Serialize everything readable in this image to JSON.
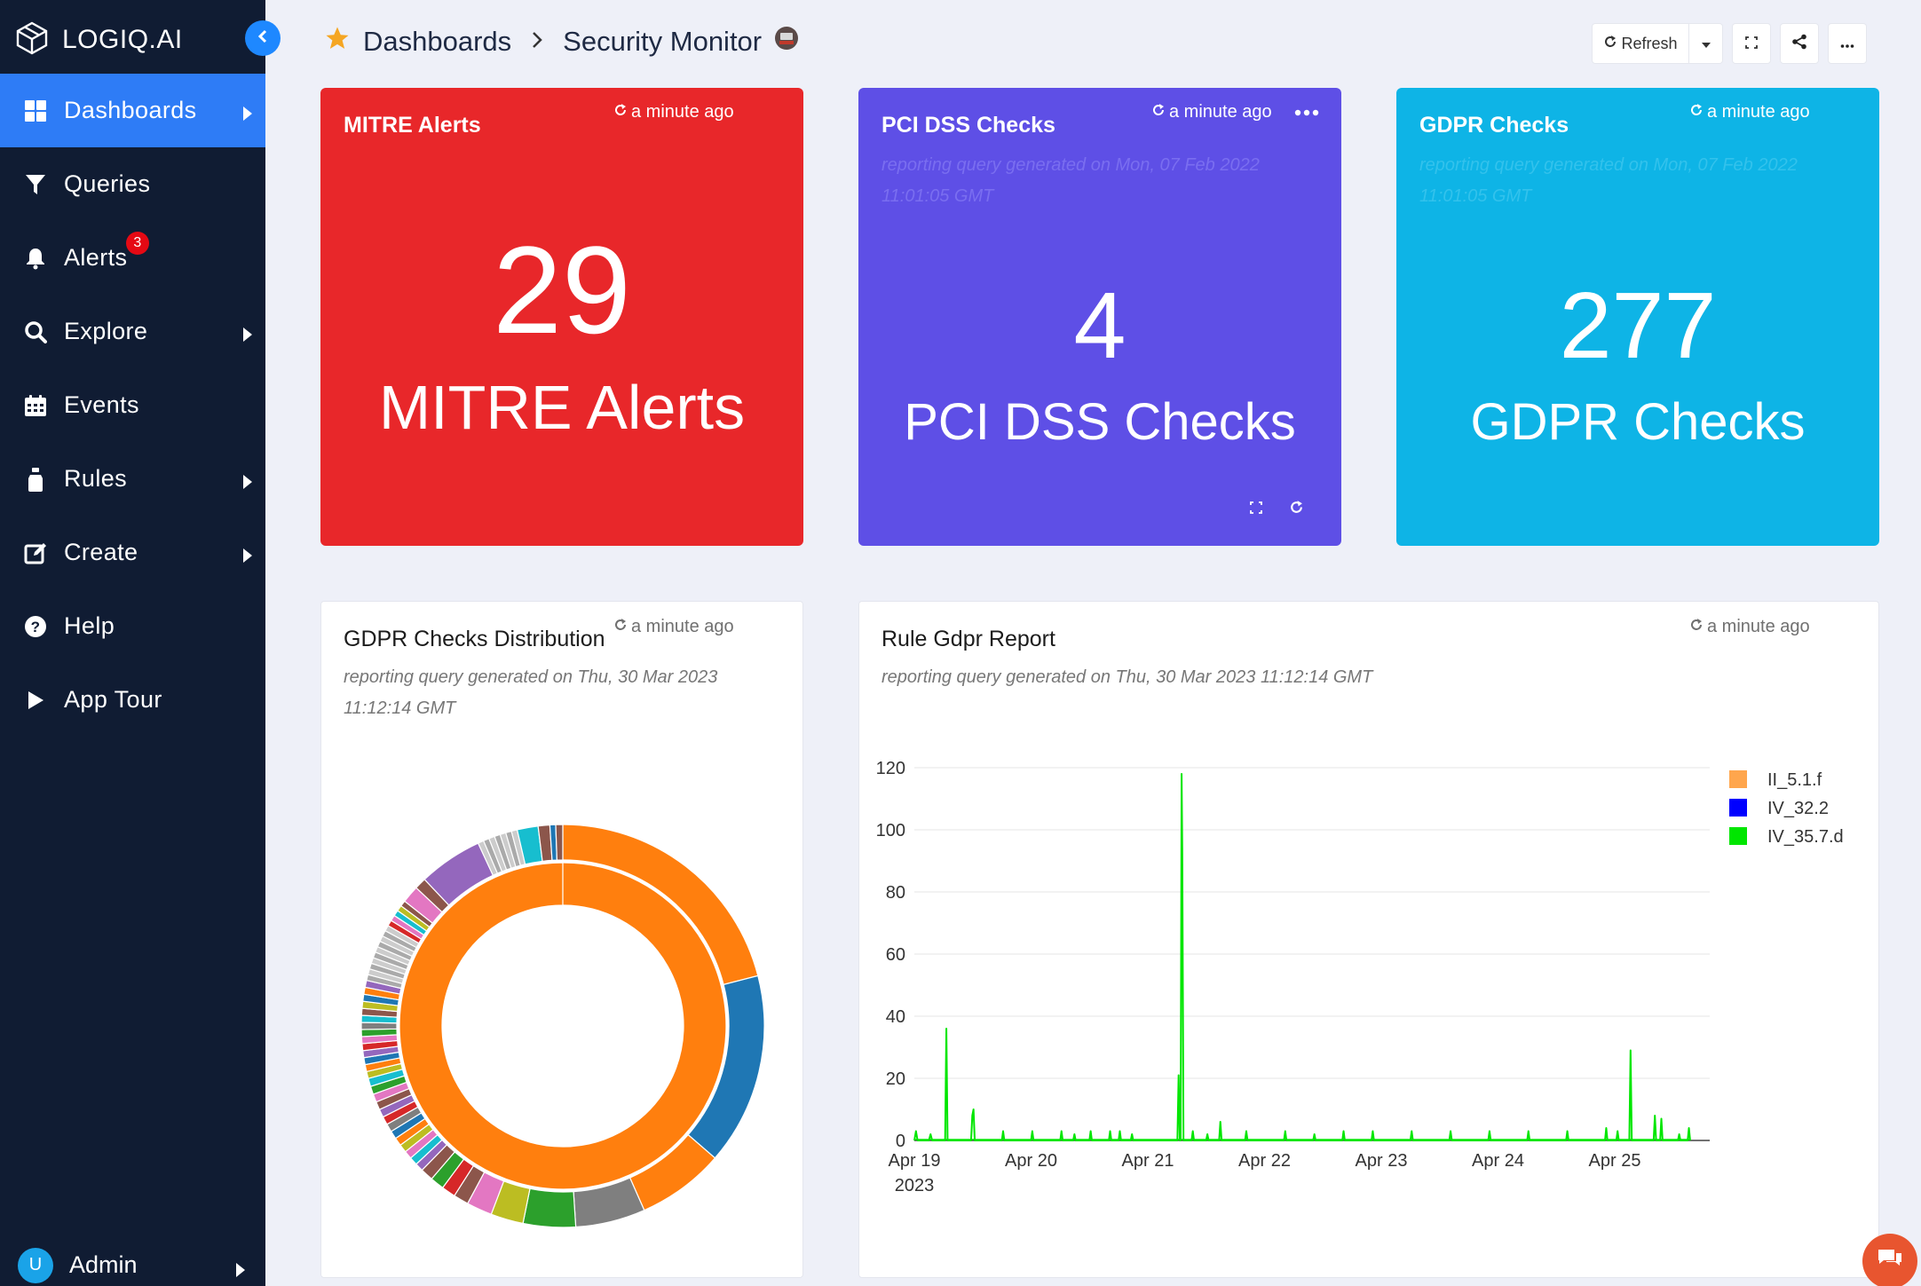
{
  "brand": {
    "name": "LOGIQ.AI"
  },
  "sidebar": {
    "items": [
      {
        "label": "Dashboards",
        "icon": "grid-icon",
        "active": true,
        "has_submenu": true
      },
      {
        "label": "Queries",
        "icon": "filter-icon",
        "has_submenu": false
      },
      {
        "label": "Alerts",
        "icon": "bell-icon",
        "badge": "3",
        "has_submenu": false
      },
      {
        "label": "Explore",
        "icon": "search-icon",
        "has_submenu": true
      },
      {
        "label": "Events",
        "icon": "calendar-icon",
        "has_submenu": false
      },
      {
        "label": "Rules",
        "icon": "rules-icon",
        "has_submenu": true
      },
      {
        "label": "Create",
        "icon": "edit-icon",
        "has_submenu": true
      },
      {
        "label": "Help",
        "icon": "help-icon",
        "has_submenu": false
      },
      {
        "label": "App Tour",
        "icon": "play-icon",
        "has_submenu": false
      }
    ],
    "user": {
      "initial": "U",
      "name": "Admin"
    }
  },
  "header": {
    "breadcrumb": {
      "root": "Dashboards",
      "current": "Security Monitor"
    },
    "refresh_label": "Refresh"
  },
  "tiles": [
    {
      "title": "MITRE Alerts",
      "time": "a minute ago",
      "value": "29",
      "label": "MITRE Alerts",
      "color": "#e8272a"
    },
    {
      "title": "PCI DSS Checks",
      "time": "a minute ago",
      "subtitle": "reporting query generated on Mon, 07 Feb 2022 11:01:05 GMT",
      "value": "4",
      "label": "PCI DSS Checks",
      "color": "#5e4fe6"
    },
    {
      "title": "GDPR Checks",
      "time": "a minute ago",
      "subtitle": "reporting query generated on Mon, 07 Feb 2022 11:01:05 GMT",
      "value": "277",
      "label": "GDPR Checks",
      "color": "#0eb4e6"
    }
  ],
  "cards": {
    "donut": {
      "title": "GDPR Checks Distribution",
      "time": "a minute ago",
      "subtitle_line1": "reporting query generated on Thu, 30 Mar 2023",
      "subtitle_line2": "11:12:14 GMT"
    },
    "line": {
      "title": "Rule Gdpr Report",
      "time": "a minute ago",
      "subtitle": "reporting query generated on Thu, 30 Mar 2023 11:12:14 GMT"
    }
  },
  "chart_data": [
    {
      "type": "pie",
      "title": "GDPR Checks Distribution",
      "inner_ring": {
        "slices": [
          {
            "value": 100,
            "color": "#ff7f0e"
          }
        ]
      },
      "outer_ring": {
        "slices": [
          {
            "value": 22.5,
            "color": "#ff7f0e"
          },
          {
            "value": 16.5,
            "color": "#1f77b4"
          },
          {
            "value": 7.5,
            "color": "#ff7f0e"
          },
          {
            "value": 6.0,
            "color": "#7f7f7f"
          },
          {
            "value": 4.5,
            "color": "#2ca02c"
          },
          {
            "value": 2.8,
            "color": "#bcbd22"
          },
          {
            "value": 2.2,
            "color": "#e377c2"
          },
          {
            "value": 1.3,
            "color": "#8c564b"
          },
          {
            "value": 1.2,
            "color": "#d62728"
          },
          {
            "value": 1.2,
            "color": "#2ca02c"
          },
          {
            "value": 1.1,
            "color": "#8c564b"
          },
          {
            "value": 0.7,
            "color": "#9467bd"
          },
          {
            "value": 0.7,
            "color": "#17becf"
          },
          {
            "value": 0.7,
            "color": "#e377c2"
          },
          {
            "value": 0.7,
            "color": "#bcbd22"
          },
          {
            "value": 0.7,
            "color": "#ff7f0e"
          },
          {
            "value": 0.7,
            "color": "#1f77b4"
          },
          {
            "value": 0.7,
            "color": "#7f7f7f"
          },
          {
            "value": 0.7,
            "color": "#d62728"
          },
          {
            "value": 0.7,
            "color": "#9467bd"
          },
          {
            "value": 0.7,
            "color": "#8c564b"
          },
          {
            "value": 0.7,
            "color": "#e377c2"
          },
          {
            "value": 0.7,
            "color": "#2ca02c"
          },
          {
            "value": 0.7,
            "color": "#17becf"
          },
          {
            "value": 0.6,
            "color": "#bcbd22"
          },
          {
            "value": 0.6,
            "color": "#ff7f0e"
          },
          {
            "value": 0.6,
            "color": "#1f77b4"
          },
          {
            "value": 0.6,
            "color": "#9467bd"
          },
          {
            "value": 0.6,
            "color": "#d62728"
          },
          {
            "value": 0.6,
            "color": "#e377c2"
          },
          {
            "value": 0.6,
            "color": "#2ca02c"
          },
          {
            "value": 0.6,
            "color": "#7f7f7f"
          },
          {
            "value": 0.6,
            "color": "#17becf"
          },
          {
            "value": 0.6,
            "color": "#8c564b"
          },
          {
            "value": 0.6,
            "color": "#bcbd22"
          },
          {
            "value": 0.6,
            "color": "#1f77b4"
          },
          {
            "value": 0.6,
            "color": "#ff7f0e"
          },
          {
            "value": 0.6,
            "color": "#9467bd"
          },
          {
            "value": 0.5,
            "color": "#aaaaaa"
          },
          {
            "value": 0.5,
            "color": "#cccccc"
          },
          {
            "value": 0.5,
            "color": "#aaaaaa"
          },
          {
            "value": 0.5,
            "color": "#cccccc"
          },
          {
            "value": 0.5,
            "color": "#aaaaaa"
          },
          {
            "value": 0.5,
            "color": "#cccccc"
          },
          {
            "value": 0.5,
            "color": "#aaaaaa"
          },
          {
            "value": 0.5,
            "color": "#cccccc"
          },
          {
            "value": 0.5,
            "color": "#aaaaaa"
          },
          {
            "value": 0.5,
            "color": "#cccccc"
          },
          {
            "value": 0.5,
            "color": "#d62728"
          },
          {
            "value": 0.5,
            "color": "#e377c2"
          },
          {
            "value": 0.5,
            "color": "#17becf"
          },
          {
            "value": 0.5,
            "color": "#bcbd22"
          },
          {
            "value": 0.5,
            "color": "#8c564b"
          },
          {
            "value": 1.5,
            "color": "#e377c2"
          },
          {
            "value": 1.0,
            "color": "#8c564b"
          },
          {
            "value": 5.5,
            "color": "#9467bd"
          },
          {
            "value": 0.5,
            "color": "#cccccc"
          },
          {
            "value": 0.5,
            "color": "#aaaaaa"
          },
          {
            "value": 0.5,
            "color": "#cccccc"
          },
          {
            "value": 0.5,
            "color": "#aaaaaa"
          },
          {
            "value": 0.5,
            "color": "#cccccc"
          },
          {
            "value": 0.5,
            "color": "#aaaaaa"
          },
          {
            "value": 0.5,
            "color": "#cccccc"
          },
          {
            "value": 1.8,
            "color": "#17becf"
          },
          {
            "value": 1.0,
            "color": "#8c564b"
          },
          {
            "value": 0.5,
            "color": "#1f77b4"
          },
          {
            "value": 0.6,
            "color": "#8c564b"
          }
        ]
      }
    },
    {
      "type": "line",
      "title": "Rule Gdpr Report",
      "xlabel": "",
      "ylabel": "",
      "ylim": [
        0,
        120
      ],
      "y_ticks": [
        0,
        20,
        40,
        60,
        80,
        100,
        120
      ],
      "x_ticks": [
        "Apr 19",
        "Apr 20",
        "Apr 21",
        "Apr 22",
        "Apr 23",
        "Apr 24",
        "Apr 25"
      ],
      "x_tick_sub": "2023",
      "grid": true,
      "legend_position": "top-right",
      "x_start": "2023-04-19",
      "x_end": "2023-04-25 15:30",
      "series": [
        {
          "name": "II_5.1.f",
          "color": "#ffa64d",
          "points": []
        },
        {
          "name": "IV_32.2",
          "color": "#0000ff",
          "points": []
        },
        {
          "name": "IV_35.7.d",
          "color": "#00e600",
          "points": [
            [
              "2023-04-19 00:00",
              0
            ],
            [
              "2023-04-19 00:20",
              3
            ],
            [
              "2023-04-19 00:40",
              0
            ],
            [
              "2023-04-19 03:00",
              0
            ],
            [
              "2023-04-19 03:20",
              2
            ],
            [
              "2023-04-19 03:40",
              0
            ],
            [
              "2023-04-19 06:20",
              0
            ],
            [
              "2023-04-19 06:35",
              36
            ],
            [
              "2023-04-19 06:50",
              0
            ],
            [
              "2023-04-19 11:40",
              0
            ],
            [
              "2023-04-19 11:55",
              8
            ],
            [
              "2023-04-19 12:10",
              10
            ],
            [
              "2023-04-19 12:25",
              0
            ],
            [
              "2023-04-19 18:00",
              0
            ],
            [
              "2023-04-19 18:15",
              3
            ],
            [
              "2023-04-19 18:30",
              0
            ],
            [
              "2023-04-20 00:00",
              0
            ],
            [
              "2023-04-20 00:15",
              3
            ],
            [
              "2023-04-20 00:30",
              0
            ],
            [
              "2023-04-20 06:00",
              0
            ],
            [
              "2023-04-20 06:15",
              3
            ],
            [
              "2023-04-20 06:30",
              0
            ],
            [
              "2023-04-20 08:40",
              0
            ],
            [
              "2023-04-20 08:55",
              2
            ],
            [
              "2023-04-20 09:10",
              0
            ],
            [
              "2023-04-20 12:00",
              0
            ],
            [
              "2023-04-20 12:15",
              3
            ],
            [
              "2023-04-20 12:30",
              0
            ],
            [
              "2023-04-20 16:00",
              0
            ],
            [
              "2023-04-20 16:15",
              3
            ],
            [
              "2023-04-20 16:30",
              0
            ],
            [
              "2023-04-20 18:00",
              0
            ],
            [
              "2023-04-20 18:15",
              3
            ],
            [
              "2023-04-20 18:30",
              0
            ],
            [
              "2023-04-20 20:30",
              0
            ],
            [
              "2023-04-20 20:45",
              2
            ],
            [
              "2023-04-20 21:00",
              0
            ],
            [
              "2023-04-21 06:05",
              0
            ],
            [
              "2023-04-21 06:20",
              21
            ],
            [
              "2023-04-21 06:35",
              0
            ],
            [
              "2023-04-21 06:45",
              0
            ],
            [
              "2023-04-21 06:57",
              118
            ],
            [
              "2023-04-21 07:05",
              94
            ],
            [
              "2023-04-21 07:20",
              0
            ],
            [
              "2023-04-21 09:00",
              0
            ],
            [
              "2023-04-21 09:15",
              3
            ],
            [
              "2023-04-21 09:30",
              0
            ],
            [
              "2023-04-21 12:00",
              0
            ],
            [
              "2023-04-21 12:15",
              2
            ],
            [
              "2023-04-21 12:30",
              0
            ],
            [
              "2023-04-21 14:40",
              0
            ],
            [
              "2023-04-21 14:55",
              6
            ],
            [
              "2023-04-21 15:10",
              0
            ],
            [
              "2023-04-21 20:00",
              0
            ],
            [
              "2023-04-21 20:15",
              3
            ],
            [
              "2023-04-21 20:30",
              0
            ],
            [
              "2023-04-22 04:00",
              0
            ],
            [
              "2023-04-22 04:15",
              3
            ],
            [
              "2023-04-22 04:30",
              0
            ],
            [
              "2023-04-22 10:00",
              0
            ],
            [
              "2023-04-22 10:15",
              2
            ],
            [
              "2023-04-22 10:30",
              0
            ],
            [
              "2023-04-22 16:00",
              0
            ],
            [
              "2023-04-22 16:15",
              3
            ],
            [
              "2023-04-22 16:30",
              0
            ],
            [
              "2023-04-22 22:00",
              0
            ],
            [
              "2023-04-22 22:15",
              3
            ],
            [
              "2023-04-22 22:30",
              0
            ],
            [
              "2023-04-23 06:00",
              0
            ],
            [
              "2023-04-23 06:15",
              3
            ],
            [
              "2023-04-23 06:30",
              0
            ],
            [
              "2023-04-23 14:00",
              0
            ],
            [
              "2023-04-23 14:15",
              3
            ],
            [
              "2023-04-23 14:30",
              0
            ],
            [
              "2023-04-23 22:00",
              0
            ],
            [
              "2023-04-23 22:15",
              3
            ],
            [
              "2023-04-23 22:30",
              0
            ],
            [
              "2023-04-24 06:00",
              0
            ],
            [
              "2023-04-24 06:15",
              3
            ],
            [
              "2023-04-24 06:30",
              0
            ],
            [
              "2023-04-24 14:00",
              0
            ],
            [
              "2023-04-24 14:15",
              3
            ],
            [
              "2023-04-24 14:30",
              0
            ],
            [
              "2023-04-24 22:00",
              0
            ],
            [
              "2023-04-24 22:15",
              4
            ],
            [
              "2023-04-24 22:30",
              0
            ],
            [
              "2023-04-25 00:20",
              0
            ],
            [
              "2023-04-25 00:35",
              3
            ],
            [
              "2023-04-25 00:50",
              0
            ],
            [
              "2023-04-25 03:00",
              0
            ],
            [
              "2023-04-25 03:15",
              29
            ],
            [
              "2023-04-25 03:30",
              0
            ],
            [
              "2023-04-25 08:00",
              0
            ],
            [
              "2023-04-25 08:15",
              8
            ],
            [
              "2023-04-25 08:30",
              0
            ],
            [
              "2023-04-25 09:20",
              0
            ],
            [
              "2023-04-25 09:35",
              7
            ],
            [
              "2023-04-25 09:50",
              0
            ],
            [
              "2023-04-25 13:00",
              0
            ],
            [
              "2023-04-25 13:15",
              2
            ],
            [
              "2023-04-25 13:30",
              0
            ],
            [
              "2023-04-25 15:00",
              0
            ],
            [
              "2023-04-25 15:15",
              4
            ],
            [
              "2023-04-25 15:30",
              0
            ]
          ]
        }
      ]
    }
  ]
}
